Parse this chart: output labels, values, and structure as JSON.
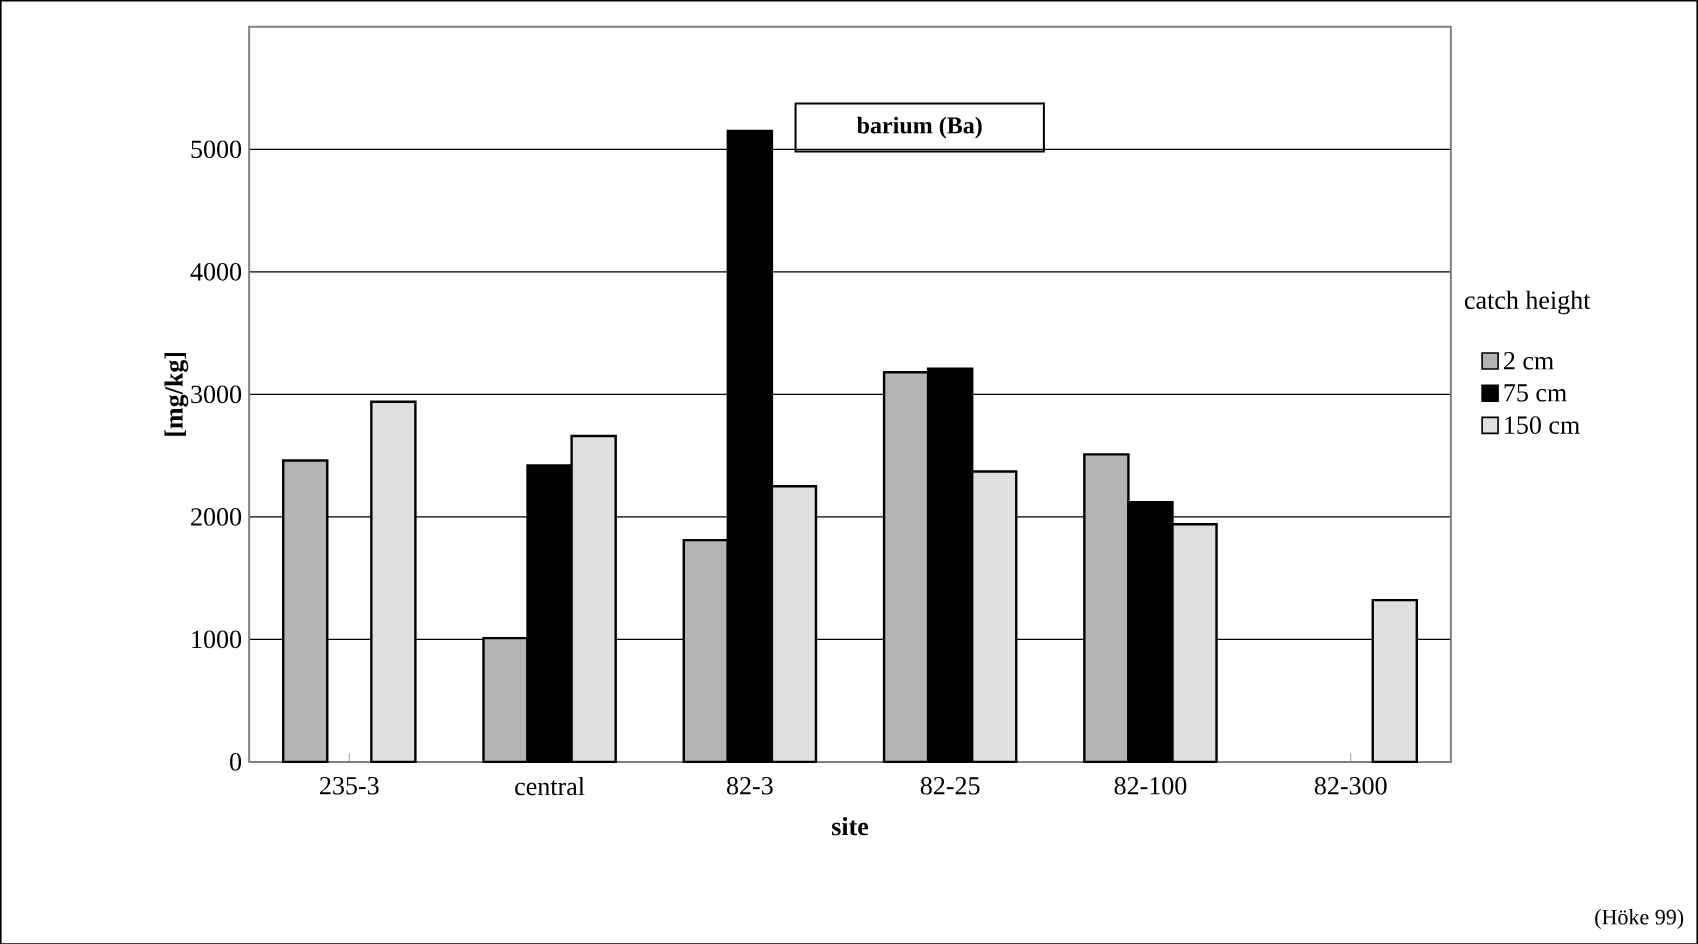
{
  "chart_data": {
    "type": "bar",
    "title": "barium (Ba)",
    "xlabel": "site",
    "ylabel": "[mg/kg]",
    "legend_title": "catch height",
    "categories": [
      "235-3",
      "central",
      "82-3",
      "82-25",
      "82-100",
      "82-300"
    ],
    "series": [
      {
        "name": "2 cm",
        "color": "#b4b4b4",
        "values": [
          2460,
          1010,
          1810,
          3180,
          2510,
          null
        ]
      },
      {
        "name": "75 cm",
        "color": "#000000",
        "values": [
          null,
          2420,
          5150,
          3210,
          2120,
          null
        ]
      },
      {
        "name": "150 cm",
        "color": "#e0e0e0",
        "values": [
          2940,
          2660,
          2250,
          2370,
          1940,
          1320
        ]
      }
    ],
    "ylim": [
      0,
      6000
    ],
    "yticks": [
      0,
      1000,
      2000,
      3000,
      4000,
      5000
    ],
    "grid": "y",
    "legend": "right",
    "annotations": [
      "(Höke 99)"
    ]
  }
}
